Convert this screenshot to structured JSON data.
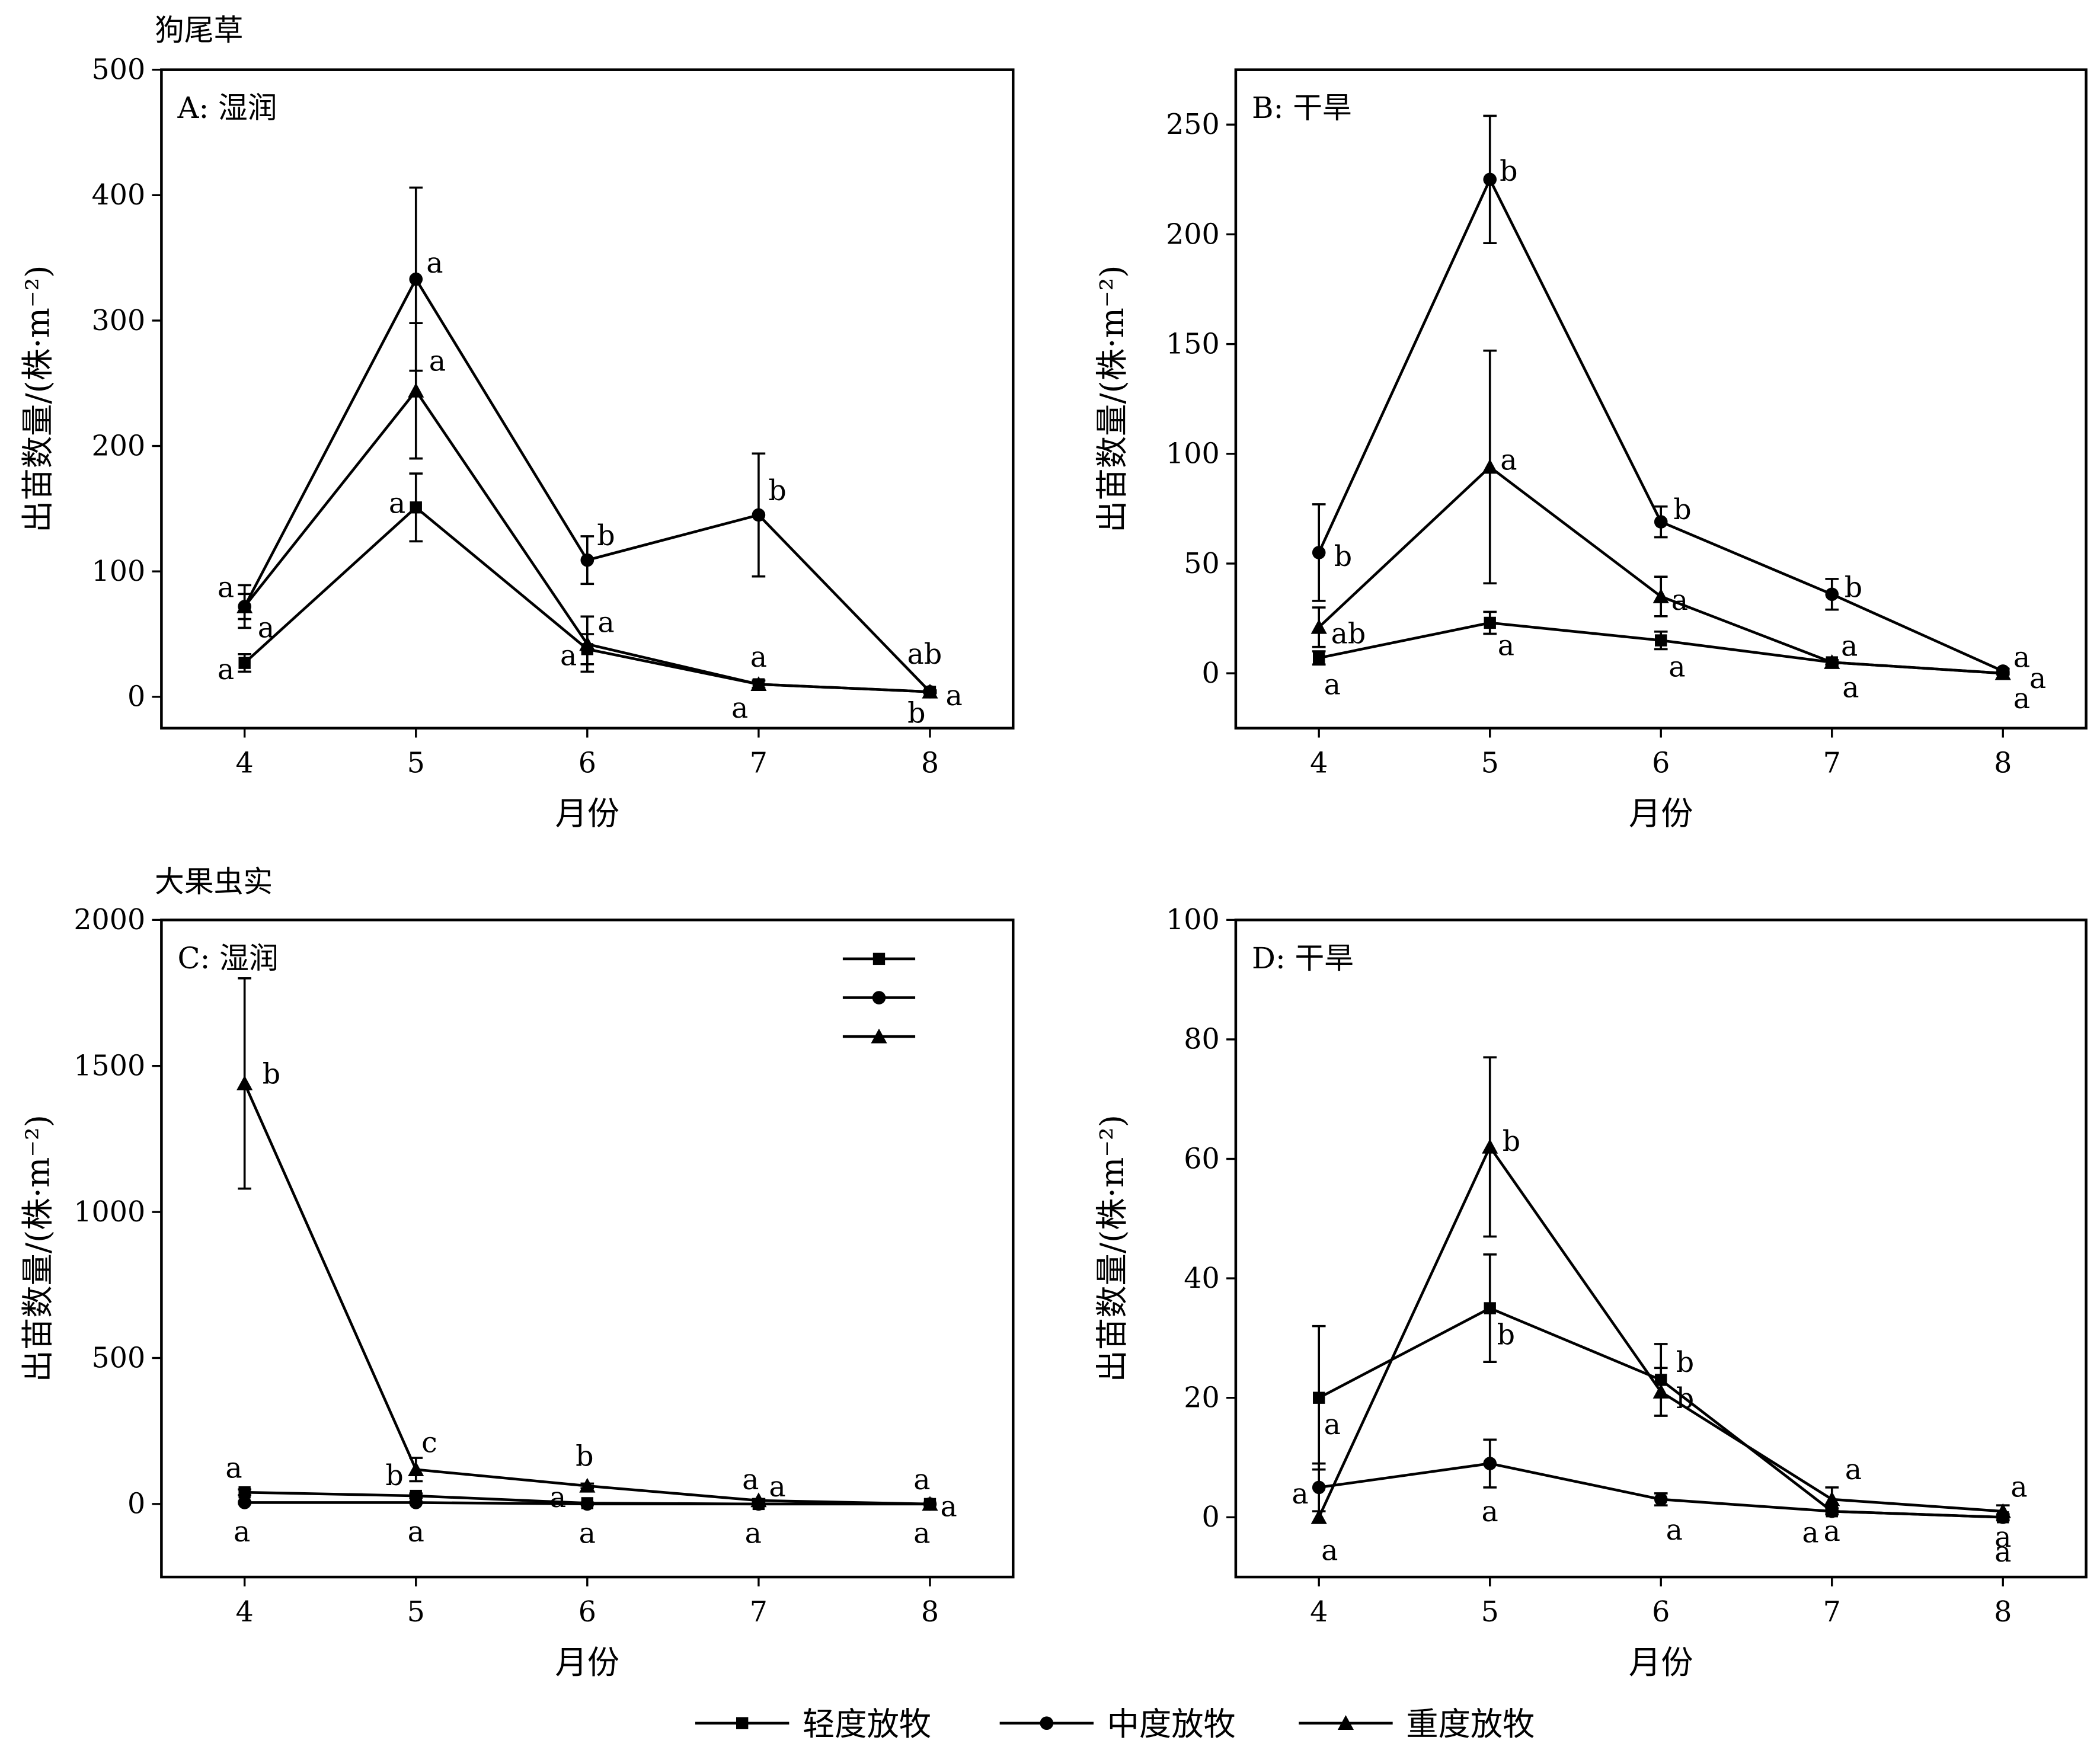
{
  "groups": [
    {
      "label": "狗尾草"
    },
    {
      "label": "大果虫实"
    }
  ],
  "legend": {
    "items": [
      {
        "name": "轻度放牧",
        "marker": "square"
      },
      {
        "name": "中度放牧",
        "marker": "circle"
      },
      {
        "name": "重度放牧",
        "marker": "triangle"
      }
    ]
  },
  "chart_data": [
    {
      "type": "line",
      "panel_label": "A: 湿润",
      "xlabel": "月份",
      "ylabel": "出苗数量/(株·m⁻²)",
      "x": [
        4,
        5,
        6,
        7,
        8
      ],
      "ylim": [
        -25,
        500
      ],
      "yticks": [
        0,
        100,
        200,
        300,
        400,
        500
      ],
      "series": [
        {
          "marker": "square",
          "values": [
            27,
            151,
            38,
            10,
            4
          ],
          "err": [
            7,
            27,
            12,
            3,
            1
          ],
          "sig": [
            "a",
            "a",
            "a",
            "a",
            "b"
          ]
        },
        {
          "marker": "circle",
          "values": [
            72,
            333,
            109,
            145,
            4
          ],
          "err": [
            17,
            73,
            19,
            49,
            1
          ],
          "sig": [
            "a",
            "a",
            "b",
            "b",
            "ab"
          ]
        },
        {
          "marker": "triangle",
          "values": [
            72,
            244,
            42,
            10,
            4
          ],
          "err": [
            10,
            54,
            22,
            3,
            1
          ],
          "sig": [
            "a",
            "a",
            "a",
            "a",
            "a"
          ]
        }
      ]
    },
    {
      "type": "line",
      "panel_label": "B: 干旱",
      "xlabel": "月份",
      "ylabel": "出苗数量/(株·m⁻²)",
      "x": [
        4,
        5,
        6,
        7,
        8
      ],
      "ylim": [
        -25,
        275
      ],
      "yticks": [
        0,
        50,
        100,
        150,
        200,
        250
      ],
      "series": [
        {
          "marker": "square",
          "values": [
            7,
            23,
            15,
            5,
            0
          ],
          "err": [
            3,
            5,
            4,
            1,
            0.5
          ],
          "sig": [
            "a",
            "a",
            "a",
            "a",
            "a"
          ]
        },
        {
          "marker": "circle",
          "values": [
            55,
            225,
            69,
            36,
            1
          ],
          "err": [
            22,
            29,
            7,
            7,
            1
          ],
          "sig": [
            "b",
            "b",
            "b",
            "b",
            "a"
          ]
        },
        {
          "marker": "triangle",
          "values": [
            21,
            94,
            35,
            5,
            0
          ],
          "err": [
            9,
            53,
            9,
            1,
            0.5
          ],
          "sig": [
            "ab",
            "a",
            "a",
            "a",
            "a"
          ]
        }
      ]
    },
    {
      "type": "line",
      "panel_label": "C: 湿润",
      "xlabel": "月份",
      "ylabel": "出苗数量/(株·m⁻²)",
      "x": [
        4,
        5,
        6,
        7,
        8
      ],
      "ylim": [
        -250,
        2000
      ],
      "yticks": [
        0,
        500,
        1000,
        1500,
        2000
      ],
      "series": [
        {
          "marker": "square",
          "values": [
            40,
            28,
            3,
            0,
            0
          ],
          "err": [
            10,
            8,
            2,
            0,
            0
          ],
          "sig": [
            "a",
            "b",
            "a",
            "a",
            "a"
          ]
        },
        {
          "marker": "circle",
          "values": [
            5,
            5,
            0,
            0,
            0
          ],
          "err": [
            3,
            2,
            0,
            0,
            0
          ],
          "sig": [
            "a",
            "a",
            "a",
            "a",
            "a"
          ]
        },
        {
          "marker": "triangle",
          "values": [
            1440,
            118,
            62,
            12,
            0
          ],
          "err": [
            360,
            40,
            8,
            5,
            0
          ],
          "sig": [
            "b",
            "c",
            "b",
            "a",
            "a"
          ]
        }
      ]
    },
    {
      "type": "line",
      "panel_label": "D: 干旱",
      "xlabel": "月份",
      "ylabel": "出苗数量/(株·m⁻²)",
      "x": [
        4,
        5,
        6,
        7,
        8
      ],
      "ylim": [
        -10,
        100
      ],
      "yticks": [
        0,
        20,
        40,
        60,
        80,
        100
      ],
      "series": [
        {
          "marker": "square",
          "values": [
            20,
            35,
            23,
            1,
            0
          ],
          "err": [
            12,
            9,
            6,
            0.5,
            0.5
          ],
          "sig": [
            "a",
            "b",
            "b",
            "a",
            "a"
          ]
        },
        {
          "marker": "circle",
          "values": [
            5,
            9,
            3,
            1,
            0
          ],
          "err": [
            4,
            4,
            1,
            0.5,
            0.5
          ],
          "sig": [
            "a",
            "a",
            "a",
            "a",
            "a"
          ]
        },
        {
          "marker": "triangle",
          "values": [
            0,
            62,
            21,
            3,
            1
          ],
          "err": [
            0,
            15,
            4,
            2,
            1
          ],
          "sig": [
            "a",
            "b",
            "b",
            "a",
            "a"
          ]
        }
      ]
    }
  ]
}
